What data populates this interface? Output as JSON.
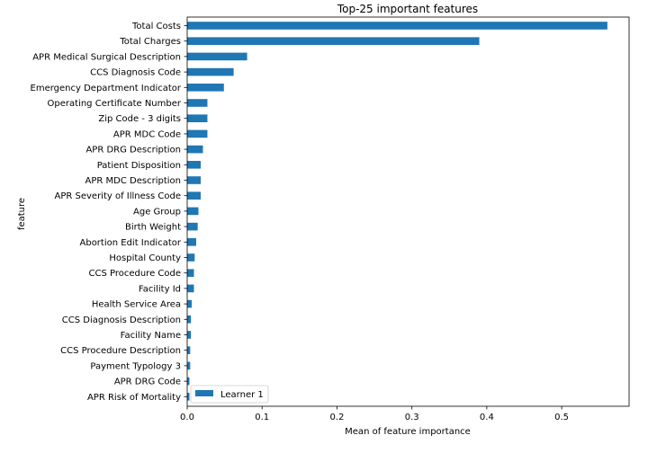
{
  "chart_data": {
    "type": "bar",
    "orientation": "horizontal",
    "title": "Top-25 important features",
    "xlabel": "Mean of feature importance",
    "ylabel": "feature",
    "xlim": [
      0,
      0.59
    ],
    "xticks": [
      0.0,
      0.1,
      0.2,
      0.3,
      0.4,
      0.5
    ],
    "xtick_labels": [
      "0.0",
      "0.1",
      "0.2",
      "0.3",
      "0.4",
      "0.5"
    ],
    "grid": false,
    "legend_position": "lower-left",
    "bar_color": "#1f77b4",
    "categories": [
      "Total Costs",
      "Total Charges",
      "APR Medical Surgical Description",
      "CCS Diagnosis Code",
      "Emergency Department Indicator",
      "Operating Certificate Number",
      "Zip Code - 3 digits",
      "APR MDC Code",
      "APR DRG Description",
      "Patient Disposition",
      "APR MDC Description",
      "APR Severity of Illness Code",
      "Age Group",
      "Birth Weight",
      "Abortion Edit Indicator",
      "Hospital County",
      "CCS Procedure Code",
      "Facility Id",
      "Health Service Area",
      "CCS Diagnosis Description",
      "Facility Name",
      "CCS Procedure Description",
      "Payment Typology 3",
      "APR DRG Code",
      "APR Risk of Mortality"
    ],
    "series": [
      {
        "name": "Learner 1",
        "values": [
          0.561,
          0.39,
          0.08,
          0.062,
          0.049,
          0.027,
          0.027,
          0.027,
          0.021,
          0.018,
          0.018,
          0.018,
          0.015,
          0.014,
          0.012,
          0.01,
          0.009,
          0.009,
          0.006,
          0.005,
          0.005,
          0.004,
          0.004,
          0.003,
          0.003
        ]
      }
    ]
  }
}
